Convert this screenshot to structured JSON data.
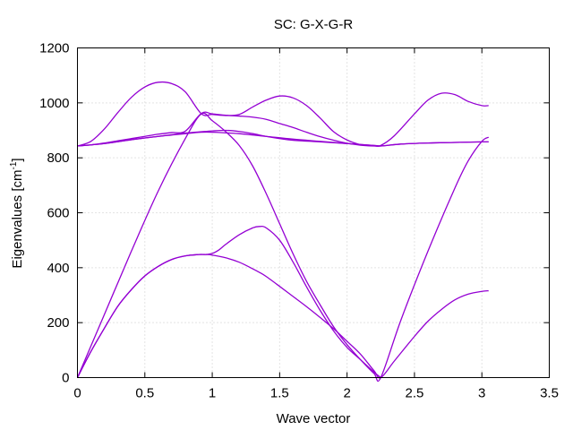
{
  "chart_data": {
    "type": "line",
    "title": "SC: G-X-G-R",
    "xlabel": "Wave vector",
    "ylabel_main": "Eigenvalues [cm",
    "ylabel_sup": "-1",
    "ylabel_end": "]",
    "xlim": [
      0,
      3.5
    ],
    "ylim": [
      0,
      1200
    ],
    "xticks": [
      0,
      0.5,
      1,
      1.5,
      2,
      2.5,
      3,
      3.5
    ],
    "xtick_labels": [
      "0",
      "0.5",
      "1",
      "1.5",
      "2",
      "2.5",
      "3",
      "3.5"
    ],
    "yticks": [
      0,
      200,
      400,
      600,
      800,
      1000,
      1200
    ],
    "ytick_labels": [
      "0",
      "200",
      "400",
      "600",
      "800",
      "1000",
      "1200"
    ],
    "grid": true,
    "line_color": "#9400d3",
    "series": [
      {
        "x": [
          0,
          0.1,
          0.2,
          0.3,
          0.4,
          0.5,
          0.6,
          0.7,
          0.8,
          0.9,
          0.95,
          1.0,
          1.1,
          1.2,
          1.3,
          1.35,
          1.4,
          1.5,
          1.6,
          1.7,
          1.8,
          1.9,
          2.0,
          2.1,
          2.2,
          2.25,
          2.35,
          2.5,
          2.6,
          2.7,
          2.8,
          2.9,
          3.0,
          3.05
        ],
        "y": [
          0,
          95,
          180,
          260,
          320,
          370,
          405,
          430,
          443,
          448,
          448,
          446,
          436,
          420,
          396,
          383,
          368,
          332,
          295,
          258,
          219,
          178,
          132,
          85,
          25,
          0,
          60,
          150,
          205,
          248,
          283,
          304,
          314,
          316
        ]
      },
      {
        "x": [
          0,
          0.1,
          0.2,
          0.3,
          0.4,
          0.5,
          0.6,
          0.7,
          0.8,
          0.9,
          0.95,
          1.0,
          1.05,
          1.1,
          1.2,
          1.3,
          1.35,
          1.4,
          1.5,
          1.6,
          1.7,
          1.8,
          1.9,
          2.0,
          2.1,
          2.2,
          2.25
        ],
        "y": [
          0,
          95,
          180,
          260,
          320,
          370,
          405,
          430,
          443,
          448,
          448,
          452,
          465,
          485,
          520,
          545,
          550,
          545,
          500,
          420,
          330,
          245,
          170,
          110,
          65,
          20,
          0
        ]
      },
      {
        "x": [
          0,
          0.2,
          0.4,
          0.6,
          0.8,
          0.92,
          1.0,
          1.1,
          1.2,
          1.3,
          1.4,
          1.5,
          1.6,
          1.7,
          1.8,
          1.9,
          2.0,
          2.1,
          2.2,
          2.25,
          2.4,
          2.6,
          2.8,
          2.9,
          3.0,
          3.05
        ],
        "y": [
          0,
          230,
          460,
          680,
          870,
          960,
          935,
          895,
          845,
          770,
          670,
          560,
          450,
          350,
          265,
          185,
          120,
          65,
          15,
          0,
          210,
          460,
          690,
          790,
          860,
          875
        ]
      },
      {
        "x": [
          0,
          0.1,
          0.2,
          0.3,
          0.4,
          0.5,
          0.6,
          0.7,
          0.8,
          0.92,
          1.0,
          1.1,
          1.2,
          1.3,
          1.4,
          1.5,
          1.6,
          1.7,
          1.8,
          1.9,
          2.0,
          2.1,
          2.2,
          2.25,
          2.35,
          2.5,
          2.6,
          2.7,
          2.8,
          2.9,
          3.0,
          3.05
        ],
        "y": [
          843,
          860,
          905,
          965,
          1020,
          1058,
          1075,
          1070,
          1040,
          960,
          958,
          954,
          958,
          985,
          1010,
          1025,
          1018,
          990,
          945,
          895,
          865,
          848,
          844,
          845,
          880,
          960,
          1010,
          1035,
          1030,
          1005,
          990,
          990
        ]
      },
      {
        "x": [
          0,
          0.1,
          0.2,
          0.3,
          0.4,
          0.5,
          0.6,
          0.7,
          0.8,
          0.92,
          1.0,
          1.1,
          1.2,
          1.3,
          1.4,
          1.5,
          1.6,
          1.7,
          1.8,
          1.9,
          2.0,
          2.1,
          2.2,
          2.25,
          2.4,
          2.6,
          2.8,
          3.0,
          3.05
        ],
        "y": [
          843,
          847,
          854,
          862,
          870,
          878,
          886,
          892,
          897,
          962,
          960,
          955,
          952,
          948,
          940,
          925,
          910,
          893,
          877,
          864,
          853,
          846,
          843,
          843,
          850,
          854,
          856,
          858,
          858
        ]
      },
      {
        "x": [
          0,
          0.2,
          0.4,
          0.6,
          0.8,
          0.92,
          1.0,
          1.1,
          1.2,
          1.3,
          1.4,
          1.5,
          1.6,
          1.8,
          2.0,
          2.2,
          2.25,
          2.4,
          2.6,
          2.8,
          3.0,
          3.05
        ],
        "y": [
          843,
          852,
          866,
          878,
          890,
          895,
          898,
          900,
          896,
          888,
          878,
          870,
          864,
          858,
          852,
          845,
          843,
          850,
          854,
          856,
          858,
          858
        ]
      },
      {
        "x": [
          0,
          0.2,
          0.4,
          0.6,
          0.8,
          0.92,
          1.0,
          1.2,
          1.4,
          1.6,
          1.8,
          2.0,
          2.2,
          2.25
        ],
        "y": [
          843,
          852,
          866,
          878,
          888,
          893,
          893,
          888,
          878,
          868,
          860,
          852,
          845,
          843
        ]
      }
    ]
  }
}
